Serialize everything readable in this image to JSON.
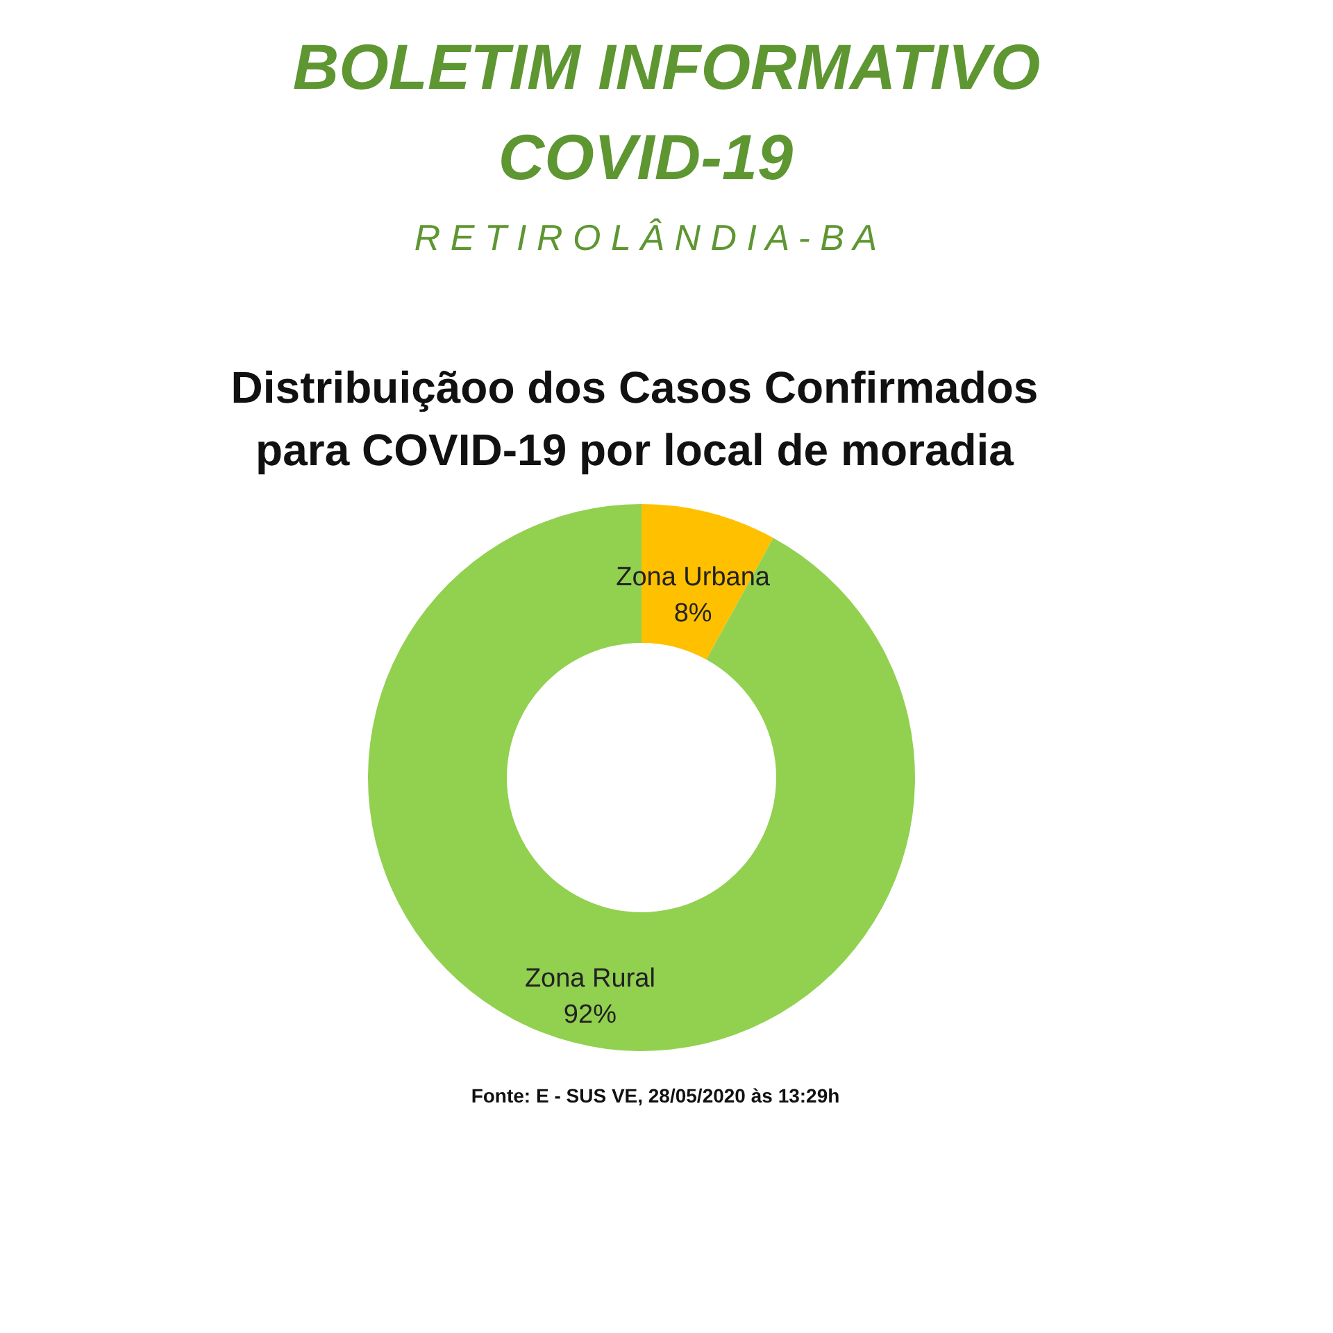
{
  "chart_data": {
    "type": "donut",
    "title": [
      "Distribuiçãoo dos Casos Confirmados",
      "para COVID-19 por local de moradia"
    ],
    "subtitle": [
      "BOLETIM INFORMATIVO",
      "COVID-19",
      "R E T I R O L Â N D I A - B A"
    ],
    "categories": [
      "Zona Urbana",
      "Zona Rural"
    ],
    "values": [
      8,
      92
    ],
    "value_labels": [
      "8%",
      "92%"
    ],
    "colors": [
      "#ffc000",
      "#92d050"
    ],
    "annotations": [
      "Fonte: E - SUS VE, 28/05/2020 às 13:29h"
    ]
  }
}
